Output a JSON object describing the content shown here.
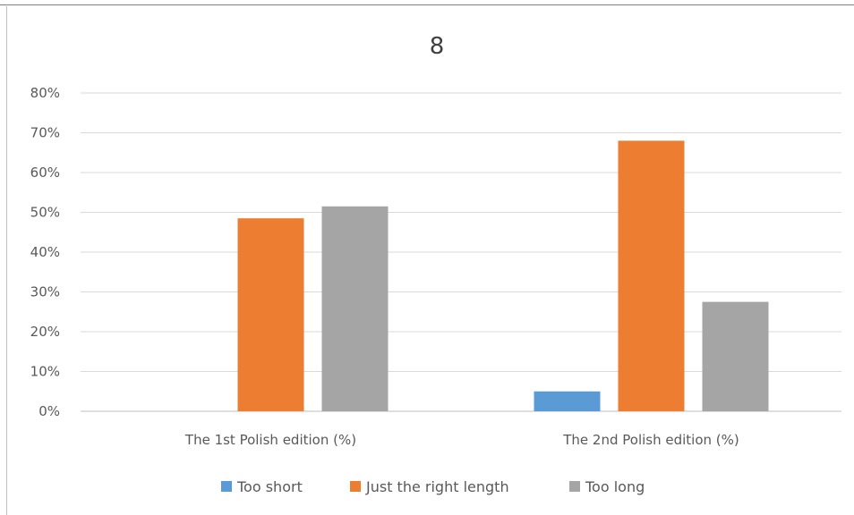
{
  "chart_data": {
    "type": "bar",
    "title": "8",
    "categories": [
      "The 1st Polish edition (%)",
      "The 2nd Polish edition (%)"
    ],
    "series": [
      {
        "name": "Too short",
        "values": [
          0,
          5
        ],
        "color": "#5b9bd5"
      },
      {
        "name": "Just the right length",
        "values": [
          48.5,
          68
        ],
        "color": "#ed7d31"
      },
      {
        "name": "Too long",
        "values": [
          51.5,
          27.5
        ],
        "color": "#a5a5a5"
      }
    ],
    "ylim": [
      0,
      80
    ],
    "yticks": [
      "0%",
      "10%",
      "20%",
      "30%",
      "40%",
      "50%",
      "60%",
      "70%",
      "80%"
    ],
    "grid": true,
    "legend_position": "bottom"
  }
}
